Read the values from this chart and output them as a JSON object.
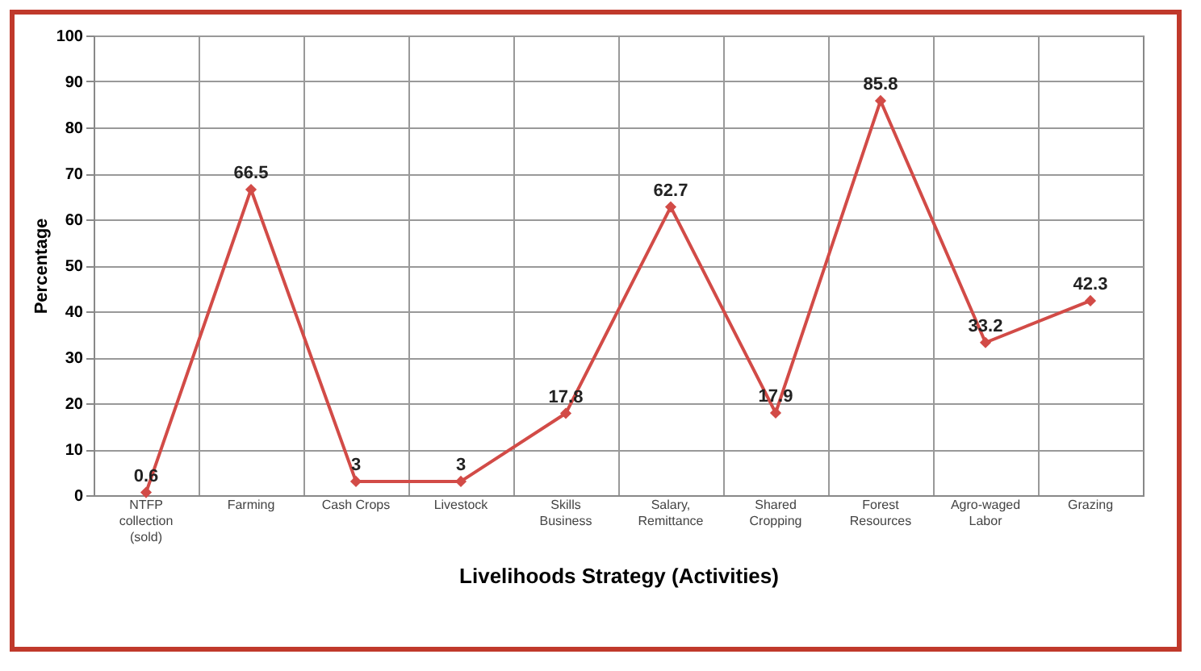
{
  "chart_data": {
    "type": "line",
    "xlabel": "Livelihoods Strategy (Activities)",
    "ylabel": "Percentage",
    "categories": [
      "NTFP collection (sold)",
      "Farming",
      "Cash Crops",
      "Livestock",
      "Skills Business",
      "Salary, Remittance",
      "Shared Cropping",
      "Forest Resources",
      "Agro-waged Labor",
      "Grazing"
    ],
    "series": [
      {
        "color": "#d24b47",
        "values": [
          0.6,
          66.5,
          3,
          3,
          17.8,
          62.7,
          17.9,
          85.8,
          33.2,
          42.3
        ]
      }
    ],
    "ylim": [
      0,
      100
    ],
    "yticks": [
      0,
      10,
      20,
      30,
      40,
      50,
      60,
      70,
      80,
      90,
      100
    ],
    "grid": true,
    "marker": "diamond",
    "line_style": "solid",
    "data_labels": true
  }
}
